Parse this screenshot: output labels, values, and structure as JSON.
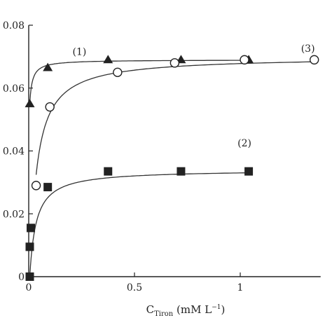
{
  "chart_data": {
    "type": "scatter",
    "xlabel": {
      "main": "C",
      "sub": "Tiron",
      "unit_prefix": " (mM L",
      "sup": "−1",
      "unit_suffix": ")"
    },
    "xlim": [
      0,
      1.45
    ],
    "ylim": [
      0,
      0.08
    ],
    "x_ticks": [
      {
        "value": 0,
        "label": "0"
      },
      {
        "value": 0.5,
        "label": "0.5"
      },
      {
        "value": 1,
        "label": "1"
      }
    ],
    "y_ticks": [
      {
        "value": 0,
        "label": "0"
      },
      {
        "value": 0.02,
        "label": "0.02"
      },
      {
        "value": 0.04,
        "label": "0.04"
      },
      {
        "value": 0.06,
        "label": "0.06"
      },
      {
        "value": 0.08,
        "label": "0.08"
      }
    ],
    "grid": false,
    "legend": "none",
    "series": [
      {
        "label": "(1)",
        "label_at": [
          0.24,
          0.0705
        ],
        "marker": "filled-triangle",
        "color": "#222222",
        "points": [
          [
            0.005,
            0.055
          ],
          [
            0.09,
            0.0665
          ],
          [
            0.375,
            0.069
          ],
          [
            0.72,
            0.069
          ],
          [
            1.04,
            0.069
          ]
        ]
      },
      {
        "label": "(2)",
        "label_at": [
          1.02,
          0.0415
        ],
        "marker": "filled-square",
        "color": "#222222",
        "points": [
          [
            0.005,
            0.0
          ],
          [
            0.005,
            0.0095
          ],
          [
            0.01,
            0.0155
          ],
          [
            0.09,
            0.0285
          ],
          [
            0.375,
            0.0335
          ],
          [
            0.72,
            0.0335
          ],
          [
            1.04,
            0.0335
          ]
        ]
      },
      {
        "label": "(3)",
        "label_at": [
          1.32,
          0.0715
        ],
        "marker": "open-circle",
        "color": "#222222",
        "points": [
          [
            0.035,
            0.029
          ],
          [
            0.1,
            0.054
          ],
          [
            0.42,
            0.065
          ],
          [
            0.69,
            0.068
          ],
          [
            1.02,
            0.069
          ],
          [
            1.35,
            0.069
          ]
        ]
      }
    ]
  }
}
